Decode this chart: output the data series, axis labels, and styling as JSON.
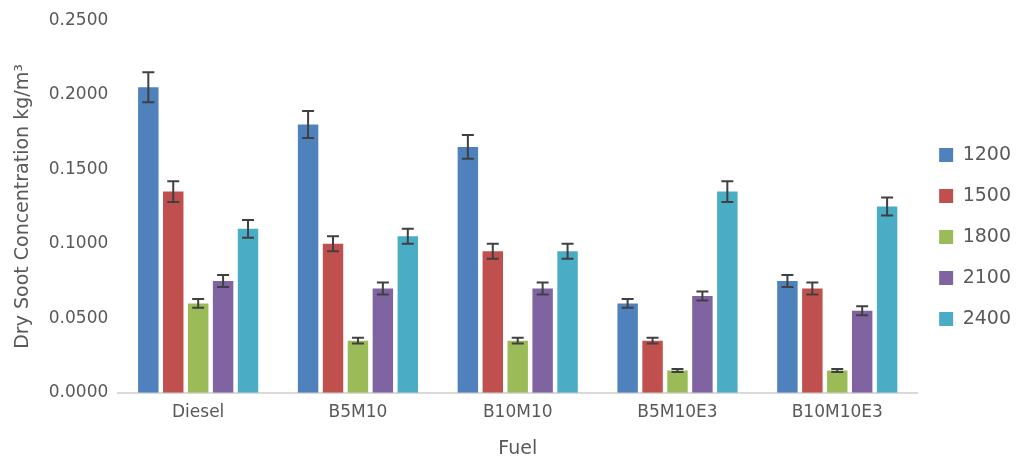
{
  "chart_data": {
    "type": "bar",
    "xlabel": "Fuel",
    "ylabel": "Dry Soot Concentration kg/m³",
    "categories": [
      "Diesel",
      "B5M10",
      "B10M10",
      "B5M10E3",
      "B10M10E3"
    ],
    "series": [
      {
        "name": "1200",
        "color": "#4f81bd",
        "values": [
          0.205,
          0.18,
          0.165,
          0.06,
          0.075
        ],
        "errors": [
          0.01,
          0.009,
          0.008,
          0.003,
          0.004
        ]
      },
      {
        "name": "1500",
        "color": "#c0504d",
        "values": [
          0.135,
          0.1,
          0.095,
          0.035,
          0.07
        ],
        "errors": [
          0.007,
          0.005,
          0.005,
          0.002,
          0.004
        ]
      },
      {
        "name": "1800",
        "color": "#9bbb59",
        "values": [
          0.06,
          0.035,
          0.035,
          0.015,
          0.015
        ],
        "errors": [
          0.003,
          0.002,
          0.002,
          0.001,
          0.001
        ]
      },
      {
        "name": "2100",
        "color": "#8064a2",
        "values": [
          0.075,
          0.07,
          0.07,
          0.065,
          0.055
        ],
        "errors": [
          0.004,
          0.004,
          0.004,
          0.003,
          0.003
        ]
      },
      {
        "name": "2400",
        "color": "#4bacc6",
        "values": [
          0.11,
          0.105,
          0.095,
          0.135,
          0.125
        ],
        "errors": [
          0.006,
          0.005,
          0.005,
          0.007,
          0.006
        ]
      }
    ],
    "ylim": [
      0,
      0.25
    ],
    "yticks": [
      {
        "value": 0,
        "label": "0.0000"
      },
      {
        "value": 0.05,
        "label": "0.0500"
      },
      {
        "value": 0.1,
        "label": "0.1000"
      },
      {
        "value": 0.15,
        "label": "0.1500"
      },
      {
        "value": 0.2,
        "label": "0.2000"
      },
      {
        "value": 0.25,
        "label": "0.2500"
      }
    ],
    "grid": false,
    "legend": "right"
  }
}
